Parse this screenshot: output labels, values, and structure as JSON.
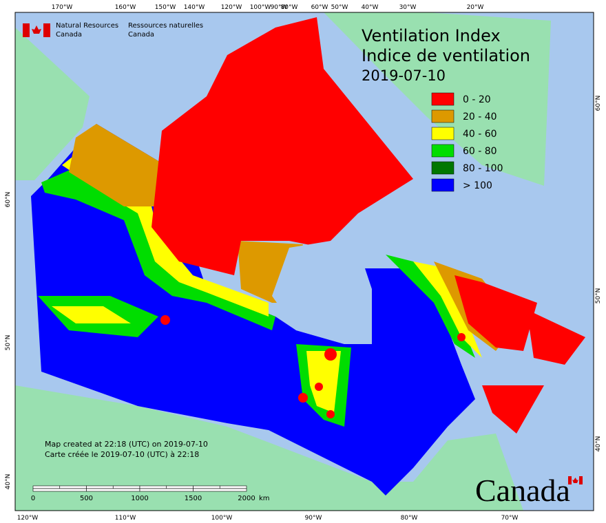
{
  "header": {
    "agency_en": [
      "Natural Resources",
      "Canada"
    ],
    "agency_fr": [
      "Ressources naturelles",
      "Canada"
    ]
  },
  "title": [
    "Ventilation Index",
    "Indice de ventilation"
  ],
  "date": "2019-07-10",
  "legend": [
    {
      "label": "0 - 20",
      "color": "#ff0000"
    },
    {
      "label": "20 - 40",
      "color": "#dd9900"
    },
    {
      "label": "40 - 60",
      "color": "#ffff00"
    },
    {
      "label": "60 - 80",
      "color": "#00dd00"
    },
    {
      "label": "80 - 100",
      "color": "#007700"
    },
    {
      "label": "> 100",
      "color": "#0000ff"
    }
  ],
  "graticule_top": [
    "170°W",
    "160°W",
    "150°W",
    "140°W",
    "120°W",
    "100°W",
    "90°W",
    "80°W",
    "60°W",
    "50°W",
    "40°W",
    "30°W",
    "20°W"
  ],
  "graticule_bottom": [
    "120°W",
    "110°W",
    "100°W",
    "90°W",
    "80°W",
    "70°W"
  ],
  "graticule_left": [
    "60°N",
    "50°N",
    "40°N"
  ],
  "graticule_right": [
    "60°N",
    "50°N",
    "40°N"
  ],
  "notes": [
    "Map created at 22:18 (UTC) on 2019-07-10",
    "Carte créée le 2019-07-10 (UTC) à 22:18"
  ],
  "scale": {
    "labels": [
      0,
      500,
      1000,
      1500,
      2000
    ],
    "unit": "km"
  },
  "wordmark": "Canada"
}
